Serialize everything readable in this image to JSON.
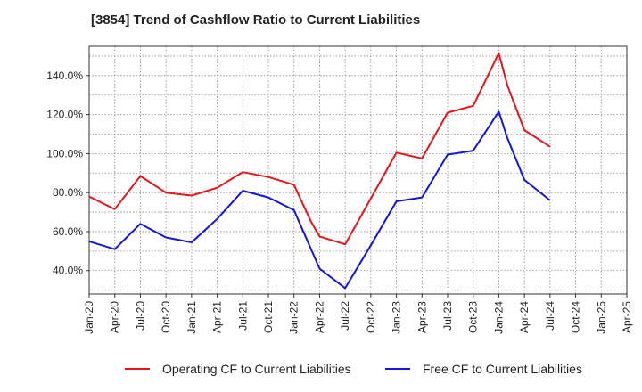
{
  "chart_data": {
    "type": "line",
    "title": "[3854]  Trend of Cashflow Ratio to Current Liabilities",
    "xlabel": "",
    "ylabel": "",
    "x_tick_labels": [
      "Jan-20",
      "Apr-20",
      "Jul-20",
      "Oct-20",
      "Jan-21",
      "Apr-21",
      "Jul-21",
      "Oct-21",
      "Jan-22",
      "Apr-22",
      "Jul-22",
      "Oct-22",
      "Jan-23",
      "Apr-23",
      "Jul-23",
      "Oct-23",
      "Jan-24",
      "Apr-24",
      "Jul-24",
      "Oct-24",
      "Jan-25",
      "Apr-25"
    ],
    "y_tick_labels": [
      "40.0%",
      "60.0%",
      "80.0%",
      "100.0%",
      "120.0%",
      "140.0%"
    ],
    "y_ticks": [
      40,
      60,
      80,
      100,
      120,
      140
    ],
    "ylim": [
      28,
      155
    ],
    "grid": true,
    "legend_position": "bottom",
    "series": [
      {
        "name": "Operating CF to Current Liabilities",
        "color": "#e8141c",
        "points": [
          {
            "x": "Jan-20",
            "y": 78.0
          },
          {
            "x": "Apr-20",
            "y": 71.5
          },
          {
            "x": "Jul-20",
            "y": 88.5
          },
          {
            "x": "Oct-20",
            "y": 80.0
          },
          {
            "x": "Jan-21",
            "y": 78.5
          },
          {
            "x": "Apr-21",
            "y": 82.5
          },
          {
            "x": "Jul-21",
            "y": 90.5
          },
          {
            "x": "Oct-21",
            "y": 88.0
          },
          {
            "x": "Jan-22",
            "y": 84.0
          },
          {
            "x": "Mar-22",
            "y": 65.0
          },
          {
            "x": "Apr-22",
            "y": 57.5
          },
          {
            "x": "Jul-22",
            "y": 53.5
          },
          {
            "x": "Oct-22",
            "y": 77.0
          },
          {
            "x": "Jan-23",
            "y": 100.5
          },
          {
            "x": "Apr-23",
            "y": 97.5
          },
          {
            "x": "Jul-23",
            "y": 121.0
          },
          {
            "x": "Oct-23",
            "y": 124.5
          },
          {
            "x": "Jan-24",
            "y": 151.5
          },
          {
            "x": "Feb-24",
            "y": 135.0
          },
          {
            "x": "Apr-24",
            "y": 112.0
          },
          {
            "x": "Jul-24",
            "y": 103.5
          }
        ]
      },
      {
        "name": "Free CF to Current Liabilities",
        "color": "#1414e0",
        "points": [
          {
            "x": "Jan-20",
            "y": 55.0
          },
          {
            "x": "Apr-20",
            "y": 51.0
          },
          {
            "x": "Jul-20",
            "y": 64.0
          },
          {
            "x": "Oct-20",
            "y": 57.0
          },
          {
            "x": "Jan-21",
            "y": 54.5
          },
          {
            "x": "Apr-21",
            "y": 66.5
          },
          {
            "x": "Jul-21",
            "y": 81.0
          },
          {
            "x": "Oct-21",
            "y": 77.5
          },
          {
            "x": "Jan-22",
            "y": 71.0
          },
          {
            "x": "Apr-22",
            "y": 41.0
          },
          {
            "x": "Jul-22",
            "y": 31.0
          },
          {
            "x": "Oct-22",
            "y": 53.0
          },
          {
            "x": "Jan-23",
            "y": 75.5
          },
          {
            "x": "Apr-23",
            "y": 77.5
          },
          {
            "x": "Jul-23",
            "y": 99.5
          },
          {
            "x": "Oct-23",
            "y": 101.5
          },
          {
            "x": "Jan-24",
            "y": 121.5
          },
          {
            "x": "Feb-24",
            "y": 108.0
          },
          {
            "x": "Apr-24",
            "y": 86.5
          },
          {
            "x": "Jul-24",
            "y": 76.0
          }
        ]
      }
    ]
  }
}
